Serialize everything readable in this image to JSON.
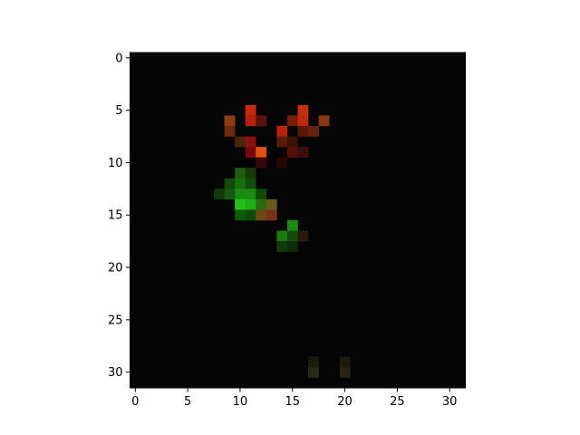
{
  "chart_data": {
    "type": "heatmap",
    "title": "",
    "xlabel": "",
    "ylabel": "",
    "grid": false,
    "legend": "none",
    "image_size": [
      32,
      32
    ],
    "xlim": [
      -0.5,
      31.5
    ],
    "ylim": [
      31.5,
      -0.5
    ],
    "y_axis_inverted": true,
    "x_ticks": [
      0,
      5,
      10,
      15,
      20,
      25,
      30
    ],
    "y_ticks": [
      0,
      5,
      10,
      15,
      20,
      25,
      30
    ],
    "x_tick_labels": [
      "0",
      "5",
      "10",
      "15",
      "20",
      "25",
      "30"
    ],
    "y_tick_labels": [
      "0",
      "5",
      "10",
      "15",
      "20",
      "25",
      "30"
    ],
    "background_pixel_color": "#050505",
    "pixels": [
      {
        "x": 11,
        "y": 5,
        "color": "#c8280a"
      },
      {
        "x": 16,
        "y": 5,
        "color": "#c0300c"
      },
      {
        "x": 9,
        "y": 6,
        "color": "#8c3a10"
      },
      {
        "x": 11,
        "y": 6,
        "color": "#b4200a"
      },
      {
        "x": 12,
        "y": 6,
        "color": "#5a1408"
      },
      {
        "x": 15,
        "y": 6,
        "color": "#7a1c0a"
      },
      {
        "x": 16,
        "y": 6,
        "color": "#c02a0c"
      },
      {
        "x": 18,
        "y": 6,
        "color": "#8a3612"
      },
      {
        "x": 9,
        "y": 7,
        "color": "#6a2a0c"
      },
      {
        "x": 14,
        "y": 7,
        "color": "#b8240a"
      },
      {
        "x": 16,
        "y": 7,
        "color": "#5a1808"
      },
      {
        "x": 17,
        "y": 7,
        "color": "#6a2010"
      },
      {
        "x": 10,
        "y": 8,
        "color": "#4a2608"
      },
      {
        "x": 11,
        "y": 8,
        "color": "#8a1010"
      },
      {
        "x": 14,
        "y": 8,
        "color": "#5a1c0a"
      },
      {
        "x": 15,
        "y": 8,
        "color": "#3c1208"
      },
      {
        "x": 11,
        "y": 9,
        "color": "#7a0a0a"
      },
      {
        "x": 12,
        "y": 9,
        "color": "#e0520e"
      },
      {
        "x": 15,
        "y": 9,
        "color": "#541008"
      },
      {
        "x": 16,
        "y": 9,
        "color": "#3e0e0a"
      },
      {
        "x": 12,
        "y": 10,
        "color": "#3a0808"
      },
      {
        "x": 14,
        "y": 10,
        "color": "#2a0808"
      },
      {
        "x": 10,
        "y": 11,
        "color": "#1e5a10"
      },
      {
        "x": 11,
        "y": 11,
        "color": "#143a08"
      },
      {
        "x": 9,
        "y": 12,
        "color": "#124a0c"
      },
      {
        "x": 10,
        "y": 12,
        "color": "#167010"
      },
      {
        "x": 11,
        "y": 12,
        "color": "#124c0a"
      },
      {
        "x": 8,
        "y": 13,
        "color": "#103a08"
      },
      {
        "x": 9,
        "y": 13,
        "color": "#125810"
      },
      {
        "x": 10,
        "y": 13,
        "color": "#188a12"
      },
      {
        "x": 11,
        "y": 13,
        "color": "#1a8c10"
      },
      {
        "x": 12,
        "y": 13,
        "color": "#134a0a"
      },
      {
        "x": 10,
        "y": 14,
        "color": "#22c018"
      },
      {
        "x": 11,
        "y": 14,
        "color": "#1fb014"
      },
      {
        "x": 12,
        "y": 14,
        "color": "#2a6a14"
      },
      {
        "x": 13,
        "y": 14,
        "color": "#6a5a1a"
      },
      {
        "x": 10,
        "y": 15,
        "color": "#0e5a0a"
      },
      {
        "x": 11,
        "y": 15,
        "color": "#0e4a08"
      },
      {
        "x": 12,
        "y": 15,
        "color": "#6a4a12"
      },
      {
        "x": 13,
        "y": 15,
        "color": "#7a3216"
      },
      {
        "x": 15,
        "y": 16,
        "color": "#1e8a10"
      },
      {
        "x": 14,
        "y": 17,
        "color": "#1c7a10"
      },
      {
        "x": 15,
        "y": 17,
        "color": "#124a0a"
      },
      {
        "x": 16,
        "y": 17,
        "color": "#2a1a08"
      },
      {
        "x": 14,
        "y": 18,
        "color": "#123a08"
      },
      {
        "x": 15,
        "y": 18,
        "color": "#0e2a06"
      },
      {
        "x": 17,
        "y": 30,
        "color": "#2a2a1a"
      },
      {
        "x": 20,
        "y": 30,
        "color": "#2a2418"
      },
      {
        "x": 17,
        "y": 29,
        "color": "#1a1a10"
      },
      {
        "x": 20,
        "y": 29,
        "color": "#1c1a10"
      }
    ]
  }
}
